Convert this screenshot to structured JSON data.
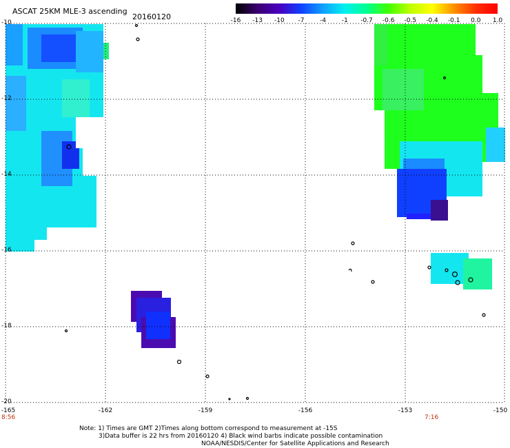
{
  "title": "ASCAT 25KM MLE-3 ascending",
  "date": "20160120",
  "colorbar": {
    "labels": [
      "-16",
      "-13",
      "-10",
      "-7",
      "-4",
      "-1",
      "-0.7",
      "-0.6",
      "-0.5",
      "-0.4",
      "-0.1",
      "0.0",
      "1.0"
    ],
    "colors": [
      "#000000",
      "#3a0070",
      "#4a00c0",
      "#1040ff",
      "#10a0ff",
      "#00f0f0",
      "#00ff90",
      "#40ff00",
      "#c0ff00",
      "#ffff00",
      "#ff9000",
      "#ff3000",
      "#ff0000"
    ]
  },
  "y_axis": {
    "labels": [
      "-10",
      "-12",
      "-14",
      "-16",
      "-18",
      "-20"
    ]
  },
  "x_axis": {
    "labels": [
      "-165",
      "-162",
      "-159",
      "-156",
      "-153",
      "-150"
    ]
  },
  "times": {
    "left": "8:56",
    "right": "7:16"
  },
  "notes": [
    "Note: 1) Times are GMT 2)Times along bottom correspond to measurement at -15S",
    "3)Data buffer is 22 hrs from 20160120 4) Black wind barbs indicate possible contamination",
    "NOAA/NESDIS/Center for Satellite Applications and Research"
  ],
  "colors": {
    "time_label": "#c03010",
    "grid": "#000000"
  }
}
